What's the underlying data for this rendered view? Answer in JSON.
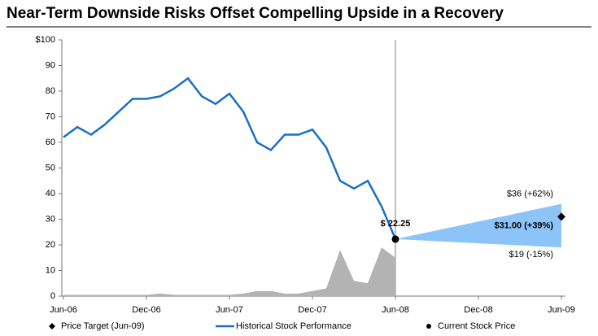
{
  "chart_data": {
    "type": "line",
    "title": "Near-Term Downside Risks Offset Compelling Upside in a Recovery",
    "x": [
      "2006-06",
      "2006-07",
      "2006-08",
      "2006-09",
      "2006-10",
      "2006-11",
      "2006-12",
      "2007-01",
      "2007-02",
      "2007-03",
      "2007-04",
      "2007-05",
      "2007-06",
      "2007-07",
      "2007-08",
      "2007-09",
      "2007-10",
      "2007-11",
      "2007-12",
      "2008-01",
      "2008-02",
      "2008-03",
      "2008-04",
      "2008-05",
      "2008-06"
    ],
    "series": [
      {
        "name": "Historical Stock Performance",
        "color": "#1a6fc4",
        "values": [
          62,
          66,
          63,
          67,
          72,
          77,
          77,
          78,
          81,
          85,
          78,
          75,
          79,
          72,
          60,
          57,
          63,
          63,
          65,
          58,
          45,
          42,
          45,
          35,
          22.25
        ]
      },
      {
        "color": "#b3b3b3",
        "area": true,
        "values": [
          0.5,
          0.5,
          0.5,
          0.5,
          0.5,
          0.5,
          0.5,
          1,
          0.5,
          0.5,
          0.5,
          0.5,
          0.5,
          1,
          2,
          2,
          1,
          1,
          2,
          3,
          18,
          6,
          5,
          19,
          15
        ]
      }
    ],
    "current": {
      "name": "Current Stock Price",
      "x": "2008-06",
      "value": 22.25,
      "value_label": "$ 22.25"
    },
    "target": {
      "name": "Price Target (Jun-09)",
      "x": "2009-06",
      "value": 31,
      "value_label": "$31.00 (+39%)"
    },
    "range": {
      "color": "#8cc4f7",
      "x": "2009-06",
      "high": 36,
      "high_label": "$36 (+62%)",
      "low": 19,
      "low_label": "$19 (-15%)"
    },
    "xlim": [
      "2006-06",
      "2009-06"
    ],
    "xticks": [
      {
        "value": "2006-06",
        "label": "Jun-06"
      },
      {
        "value": "2006-12",
        "label": "Dec-06"
      },
      {
        "value": "2007-06",
        "label": "Jun-07"
      },
      {
        "value": "2007-12",
        "label": "Dec-07"
      },
      {
        "value": "2008-06",
        "label": "Jun-08"
      },
      {
        "value": "2008-12",
        "label": "Dec-08"
      },
      {
        "value": "2009-06",
        "label": "Jun-09"
      }
    ],
    "ylim": [
      0,
      100
    ],
    "yticks": [
      0,
      10,
      20,
      30,
      40,
      50,
      60,
      70,
      80,
      90,
      {
        "value": 100,
        "label": "$100"
      }
    ]
  }
}
